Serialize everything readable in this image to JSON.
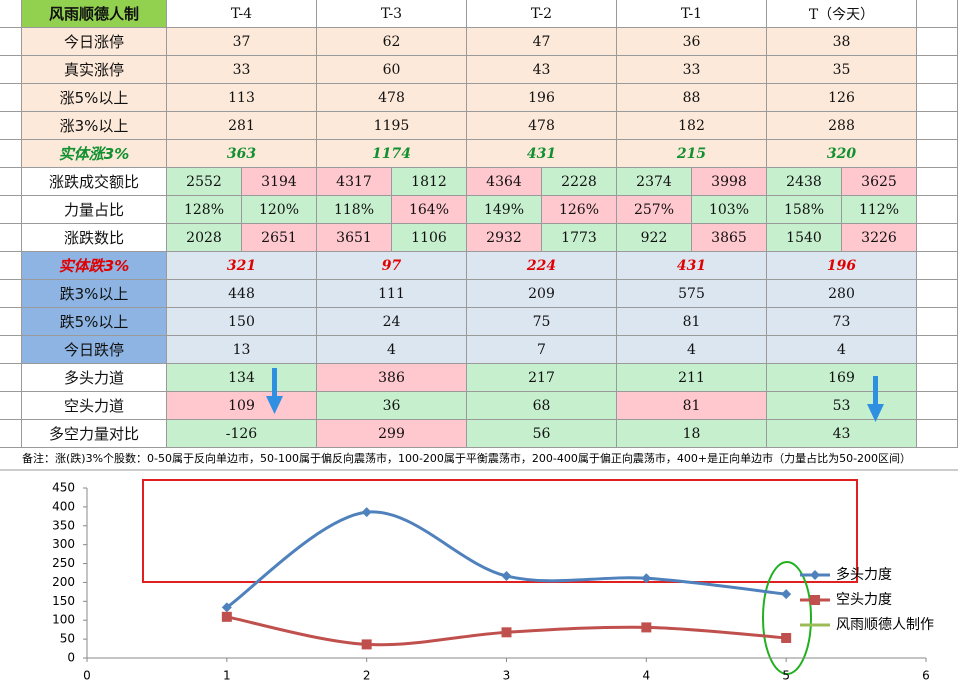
{
  "table": {
    "header": [
      "风雨顺德人制",
      "T-4",
      "T-3",
      "T-2",
      "T-1",
      "T（今天）"
    ],
    "rows": [
      {
        "label": "今日涨停",
        "label_tone": "p",
        "values": [
          37,
          62,
          47,
          36,
          38
        ],
        "tones": [
          "p",
          "p",
          "p",
          "p",
          "p"
        ]
      },
      {
        "label": "真实涨停",
        "label_tone": "p",
        "values": [
          33,
          60,
          43,
          33,
          35
        ],
        "tones": [
          "p",
          "p",
          "p",
          "p",
          "p"
        ]
      },
      {
        "label": "涨5%以上",
        "label_tone": "p",
        "values": [
          113,
          478,
          196,
          88,
          126
        ],
        "tones": [
          "p",
          "p",
          "p",
          "p",
          "p"
        ]
      },
      {
        "label": "涨3%以上",
        "label_tone": "p",
        "values": [
          281,
          1195,
          478,
          182,
          288
        ],
        "tones": [
          "p",
          "p",
          "p",
          "p",
          "p"
        ]
      },
      {
        "label": "实体涨3%",
        "label_tone": "p",
        "font": "green-bold",
        "values": [
          363,
          1174,
          431,
          215,
          320
        ],
        "tones": [
          "p",
          "p",
          "p",
          "p",
          "p"
        ]
      },
      {
        "label": "涨跌成交额比",
        "label_tone": "w",
        "values": [
          2552,
          3194,
          4317,
          1812,
          4364,
          2228,
          2374,
          3998,
          2438,
          3625
        ],
        "tones": [
          "g",
          "r",
          "r",
          "g",
          "r",
          "g",
          "g",
          "r",
          "g",
          "r"
        ]
      },
      {
        "label": "力量占比",
        "label_tone": "w",
        "values": [
          "128%",
          "120%",
          "118%",
          "164%",
          "149%",
          "126%",
          "257%",
          "103%",
          "158%",
          "112%"
        ],
        "tones": [
          "g",
          "g",
          "g",
          "r",
          "g",
          "r",
          "r",
          "g",
          "g",
          "g"
        ]
      },
      {
        "label": "涨跌数比",
        "label_tone": "w",
        "values": [
          2028,
          2651,
          3651,
          1106,
          2932,
          1773,
          922,
          3865,
          1540,
          3226
        ],
        "tones": [
          "g",
          "r",
          "r",
          "g",
          "r",
          "g",
          "g",
          "r",
          "g",
          "r"
        ]
      },
      {
        "label": "实体跌3%",
        "label_tone": "b",
        "font": "red-bold",
        "values": [
          321,
          97,
          224,
          431,
          196
        ],
        "tones": [
          "l",
          "l",
          "l",
          "l",
          "l"
        ]
      },
      {
        "label": "跌3%以上",
        "label_tone": "b",
        "values": [
          448,
          111,
          209,
          575,
          280
        ],
        "tones": [
          "l",
          "l",
          "l",
          "l",
          "l"
        ]
      },
      {
        "label": "跌5%以上",
        "label_tone": "b",
        "values": [
          150,
          24,
          75,
          81,
          73
        ],
        "tones": [
          "l",
          "l",
          "l",
          "l",
          "l"
        ]
      },
      {
        "label": "今日跌停",
        "label_tone": "b",
        "values": [
          13,
          4,
          7,
          4,
          4
        ],
        "tones": [
          "l",
          "l",
          "l",
          "l",
          "l"
        ]
      },
      {
        "label": "多头力道",
        "label_tone": "w",
        "values": [
          134,
          386,
          217,
          211,
          169
        ],
        "tones": [
          "g",
          "r",
          "g",
          "g",
          "g"
        ]
      },
      {
        "label": "空头力道",
        "label_tone": "w",
        "values": [
          109,
          36,
          68,
          81,
          53
        ],
        "tones": [
          "r",
          "g",
          "g",
          "r",
          "g"
        ]
      },
      {
        "label": "多空力量对比",
        "label_tone": "w",
        "values": [
          -126,
          299,
          56,
          18,
          43
        ],
        "tones": [
          "g",
          "r",
          "g",
          "g",
          "g"
        ]
      }
    ],
    "note": "备注：涨(跌)3%个股数：0-50属于反向单边市，50-100属于偏反向震荡市，100-200属于平衡震荡市，200-400属于偏正向震荡市，400+是正向单边市（力量占比为50-200区间）"
  },
  "chart_data": {
    "type": "line",
    "x": [
      1,
      2,
      3,
      4,
      5
    ],
    "series": [
      {
        "name": "多头力度",
        "color": "#4f81bd",
        "marker": "diamond",
        "values": [
          134,
          386,
          217,
          211,
          169
        ]
      },
      {
        "name": "空头力度",
        "color": "#c0504d",
        "marker": "square",
        "values": [
          109,
          36,
          68,
          81,
          53
        ]
      },
      {
        "name": "风雨顺德人制作",
        "color": "#9bbb59"
      }
    ],
    "xlim": [
      0,
      6
    ],
    "xticks": [
      0,
      1,
      2,
      3,
      4,
      5,
      6
    ],
    "ylim": [
      0,
      450
    ],
    "yticks": [
      0,
      50,
      100,
      150,
      200,
      250,
      300,
      350,
      400,
      450
    ],
    "smooth": true
  }
}
